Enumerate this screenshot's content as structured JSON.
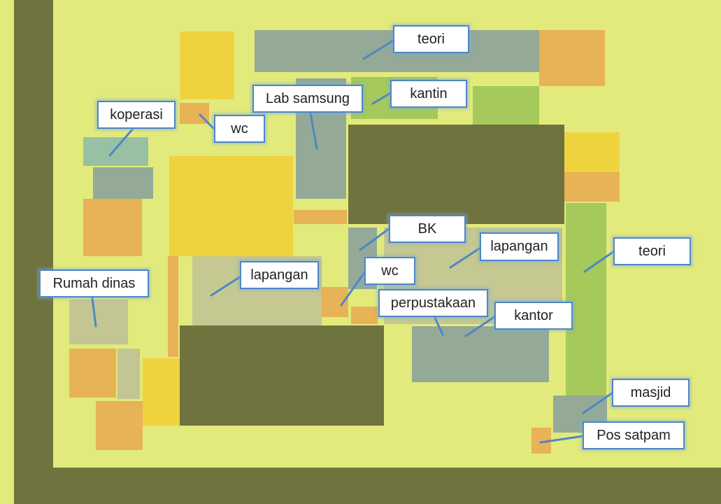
{
  "map": {
    "labels": {
      "teori_top": "teori",
      "kantin": "kantin",
      "lab_samsung": "Lab samsung",
      "koperasi": "koperasi",
      "wc_top": "wc",
      "bk": "BK",
      "lapangan_right": "lapangan",
      "teori_right": "teori",
      "lapangan_left": "lapangan",
      "wc_mid": "wc",
      "rumah_dinas": "Rumah dinas",
      "perpustakaan": "perpustakaan",
      "kantor": "kantor",
      "masjid": "masjid",
      "pos_satpam": "Pos satpam"
    },
    "colors": {
      "ground": "#e2ea7c",
      "road": "#6f733d",
      "orange_building": "#e8b256",
      "yellow_building": "#eed33f",
      "slate_building": "#94aa96",
      "green_building": "#a5c95a",
      "field": "#c5c890",
      "label_border": "#4e86c6",
      "leader_line": "#4f86c8"
    }
  }
}
